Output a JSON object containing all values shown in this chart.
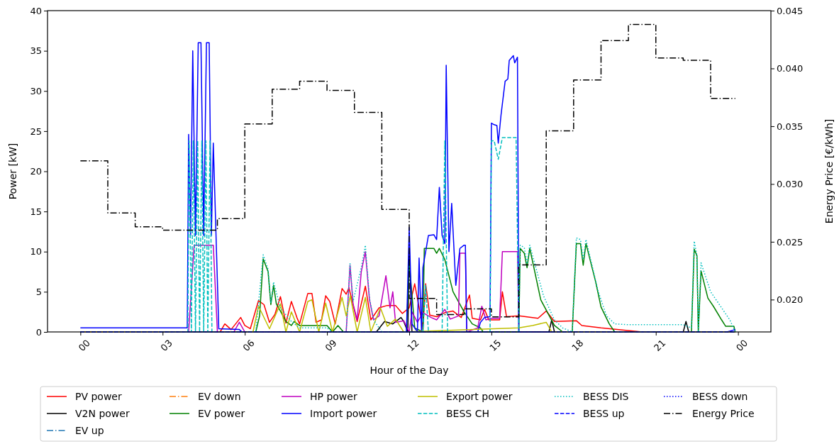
{
  "chart_data": {
    "type": "line",
    "xlabel": "Hour of the Day",
    "ylabel": "Power [kW]",
    "y2label": "Energy Price [€/kWh]",
    "xlim": [
      -1.2,
      25.2
    ],
    "xticks": [
      {
        "value": 0,
        "label": "00"
      },
      {
        "value": 3,
        "label": "03"
      },
      {
        "value": 6,
        "label": "06"
      },
      {
        "value": 9,
        "label": "09"
      },
      {
        "value": 12,
        "label": "12"
      },
      {
        "value": 15,
        "label": "15"
      },
      {
        "value": 18,
        "label": "18"
      },
      {
        "value": 21,
        "label": "21"
      },
      {
        "value": 24,
        "label": "00"
      }
    ],
    "ylim": [
      0,
      40
    ],
    "yticks": [
      0,
      5,
      10,
      15,
      20,
      25,
      30,
      35,
      40
    ],
    "y2lim": [
      0.0172,
      0.045
    ],
    "y2ticks": [
      {
        "value": 0.02,
        "label": "0.020"
      },
      {
        "value": 0.025,
        "label": "0.025"
      },
      {
        "value": 0.03,
        "label": "0.030"
      },
      {
        "value": 0.035,
        "label": "0.035"
      },
      {
        "value": 0.04,
        "label": "0.040"
      },
      {
        "value": 0.045,
        "label": "0.045"
      }
    ],
    "grid": false,
    "legend": "bottom",
    "series": [
      {
        "name": "PV power",
        "color": "#ff0000",
        "line_style": "solid",
        "x": [
          0,
          5.1,
          5.27,
          5.5,
          5.85,
          6.0,
          6.2,
          6.5,
          6.7,
          6.9,
          7.1,
          7.3,
          7.5,
          7.7,
          7.9,
          8.0,
          8.3,
          8.45,
          8.6,
          8.8,
          8.95,
          9.1,
          9.3,
          9.55,
          9.7,
          9.8,
          10.1,
          10.4,
          10.6,
          10.9,
          11.2,
          11.5,
          11.75,
          12.0,
          12.2,
          12.5,
          12.6,
          12.75,
          13.0,
          13.3,
          13.6,
          13.9,
          14.2,
          14.3,
          14.6,
          14.75,
          14.9,
          15.3,
          15.4,
          15.55,
          16.0,
          16.7,
          17.0,
          17.3,
          18.1,
          18.3,
          19.0,
          20.5,
          23.9
        ],
        "values": [
          0,
          0,
          1,
          0.3,
          1.8,
          0.8,
          0.4,
          3.9,
          3.4,
          1.2,
          2.2,
          4.4,
          1.1,
          3.8,
          1.8,
          1.0,
          4.8,
          4.8,
          1.2,
          1.5,
          4.5,
          3.8,
          1.0,
          5.4,
          4.7,
          5.5,
          1.3,
          5.7,
          1.5,
          3.0,
          3.3,
          3.3,
          2.3,
          3.0,
          6.0,
          0.5,
          6.0,
          2.1,
          1.9,
          2.4,
          2.6,
          1.8,
          4.6,
          1.7,
          1.5,
          2.8,
          1.5,
          1.5,
          5.0,
          1.9,
          2.0,
          1.7,
          2.6,
          1.3,
          1.4,
          0.8,
          0.5,
          0,
          0
        ]
      },
      {
        "name": "V2N power",
        "color": "#000000",
        "line_style": "solid",
        "x": [
          0,
          10.8,
          11.1,
          11.4,
          11.7,
          11.8,
          11.95,
          12.0,
          12.1,
          17.1,
          17.2,
          17.3,
          22.0,
          22.1,
          22.2,
          23.9
        ],
        "values": [
          0,
          0,
          1.3,
          1.0,
          1.8,
          1.3,
          0,
          10.6,
          0,
          0,
          1.5,
          0,
          0,
          1.3,
          0,
          0
        ]
      },
      {
        "name": "EV up",
        "color": "#1f77b4",
        "line_style": "dashdot"
      },
      {
        "name": "EV down",
        "color": "#ff7f0e",
        "line_style": "dashdot"
      },
      {
        "name": "EV power",
        "color": "#008000",
        "line_style": "solid",
        "x": [
          0,
          6.4,
          6.54,
          6.67,
          6.85,
          6.95,
          7.05,
          7.15,
          7.3,
          7.5,
          7.7,
          7.8,
          8.0,
          9.0,
          9.2,
          9.4,
          9.6,
          11.9,
          12.0,
          12.2,
          12.5,
          12.55,
          12.9,
          13.0,
          13.1,
          13.3,
          13.6,
          14.0,
          14.3,
          14.6,
          14.7,
          16.0,
          16.05,
          16.2,
          16.3,
          16.4,
          16.8,
          17.3,
          17.6,
          17.95,
          18.1,
          18.25,
          18.35,
          18.45,
          18.8,
          19.0,
          19.3,
          19.5,
          22.3,
          22.4,
          22.5,
          22.55,
          22.65,
          22.9,
          23.1,
          23.4,
          23.55,
          23.85,
          23.9
        ],
        "values": [
          0,
          0,
          2,
          9.1,
          7.5,
          3.4,
          5.8,
          3.5,
          2.6,
          1.3,
          0.8,
          1.3,
          0.8,
          0.8,
          0,
          0.8,
          0,
          0,
          8.8,
          0.5,
          0,
          10.4,
          10.4,
          9.8,
          10.4,
          9,
          5,
          2.5,
          1,
          0.5,
          0,
          0,
          10.4,
          9.8,
          8,
          10.4,
          4,
          0.8,
          0,
          0,
          11,
          11,
          8.3,
          11,
          6.3,
          3.1,
          1,
          0,
          0,
          10.3,
          9.5,
          0,
          7.6,
          4.2,
          3.2,
          1.5,
          0.7,
          0.7,
          0
        ]
      },
      {
        "name": "HP power",
        "color": "#bf00bf",
        "line_style": "solid",
        "x": [
          0,
          3.95,
          4.15,
          4.85,
          5.0,
          5.6,
          5.8,
          6.0,
          9.7,
          9.84,
          9.95,
          10.1,
          10.25,
          10.4,
          10.55,
          10.7,
          10.9,
          11.15,
          11.3,
          11.4,
          11.5,
          11.8,
          12.0,
          12.1,
          12.3,
          12.5,
          12.8,
          13.0,
          13.3,
          13.5,
          13.8,
          13.85,
          14.05,
          14.1,
          14.5,
          14.65,
          14.8,
          15.0,
          15.3,
          15.4,
          15.95,
          16.0,
          23.9
        ],
        "values": [
          0,
          0,
          10.8,
          10.8,
          0,
          0,
          1.2,
          0,
          0,
          8.3,
          3.5,
          1.5,
          7.5,
          10,
          4,
          1.5,
          2,
          7,
          3,
          5,
          1.2,
          1.4,
          0,
          2.5,
          1.2,
          2.4,
          1.8,
          1.5,
          2.8,
          1.6,
          2,
          9.8,
          9.8,
          0,
          0.5,
          3.2,
          1.5,
          1.7,
          1.7,
          10,
          10,
          0,
          0
        ]
      },
      {
        "name": "Import power",
        "color": "#0000ff",
        "line_style": "solid",
        "x": [
          0,
          3.9,
          3.95,
          4.02,
          4.1,
          4.2,
          4.3,
          4.4,
          4.5,
          4.6,
          4.7,
          4.78,
          4.85,
          5.05,
          5.8,
          5.9,
          11.9,
          12.0,
          12.1,
          12.3,
          12.36,
          12.45,
          12.5,
          12.6,
          12.7,
          12.9,
          13.0,
          13.1,
          13.2,
          13.3,
          13.35,
          13.45,
          13.55,
          13.7,
          13.85,
          14.0,
          14.05,
          14.1,
          14.5,
          14.6,
          14.75,
          14.95,
          15.0,
          15.1,
          15.2,
          15.25,
          15.35,
          15.5,
          15.6,
          15.65,
          15.8,
          15.85,
          15.95,
          16.0,
          23.6,
          23.9
        ],
        "values": [
          0.5,
          0.5,
          24.6,
          12,
          35,
          12,
          36,
          36,
          12,
          36,
          36,
          12,
          23.5,
          0.4,
          0.3,
          0,
          0,
          13,
          1,
          0,
          9.2,
          0,
          8,
          10,
          12,
          12.1,
          11.5,
          18,
          12,
          11,
          33.2,
          10,
          16,
          5.8,
          10.4,
          10.8,
          10.8,
          0,
          0,
          1.2,
          1.8,
          1.9,
          26,
          25.8,
          25.7,
          23.5,
          27,
          31.2,
          31.5,
          33.8,
          34.4,
          33.5,
          34.2,
          0,
          0,
          0.3
        ]
      },
      {
        "name": "Export power",
        "color": "#bfbf00",
        "line_style": "solid",
        "x": [
          0,
          6.3,
          6.5,
          6.9,
          7.3,
          7.5,
          7.7,
          8.0,
          8.3,
          8.45,
          8.7,
          8.95,
          9.2,
          9.55,
          9.7,
          9.85,
          10.1,
          10.4,
          10.6,
          10.95,
          11.2,
          11.5,
          11.8,
          16.0,
          16.5,
          17.0,
          17.2,
          23.9
        ],
        "values": [
          0,
          0,
          3.2,
          0.4,
          3.5,
          0,
          2.5,
          0,
          3.8,
          4,
          0,
          3.6,
          0,
          4.3,
          2,
          4.5,
          0,
          4.3,
          0,
          3,
          0.7,
          1.6,
          0,
          0.5,
          0.8,
          1.2,
          0,
          0
        ]
      },
      {
        "name": "BESS CH",
        "color": "#00bfbf",
        "line_style": "dashed",
        "x": [
          0,
          3.92,
          3.97,
          4.05,
          4.12,
          4.2,
          4.28,
          4.35,
          4.43,
          4.5,
          4.58,
          4.65,
          4.73,
          4.8,
          4.87,
          12.5,
          12.6,
          12.7,
          13.2,
          13.3,
          13.4,
          14.95,
          15.0,
          15.1,
          15.25,
          15.4,
          15.9,
          16.0,
          23.9
        ],
        "values": [
          0,
          0,
          23.8,
          0,
          23.8,
          0,
          23.8,
          0,
          23.8,
          0,
          23.8,
          0,
          23.8,
          0,
          0,
          0,
          5.8,
          0,
          0,
          23.8,
          0,
          0,
          23.8,
          23.8,
          21.5,
          24.2,
          24.2,
          0,
          0
        ]
      },
      {
        "name": "BESS DIS",
        "color": "#00bfbf",
        "line_style": "dotted",
        "x": [
          0,
          6.4,
          6.67,
          6.85,
          6.95,
          7.05,
          7.3,
          7.7,
          8.0,
          9.0,
          9.2,
          9.7,
          9.84,
          9.95,
          10.25,
          10.4,
          10.55,
          10.7,
          11.0,
          12.5,
          16.0,
          16.05,
          16.2,
          16.3,
          16.4,
          16.9,
          17.3,
          17.6,
          17.95,
          18.1,
          18.25,
          18.35,
          18.45,
          18.9,
          19.2,
          19.5,
          20.0,
          22.0,
          22.3,
          22.4,
          22.5,
          22.55,
          22.65,
          23.0,
          23.4,
          23.7,
          23.9
        ],
        "values": [
          0,
          0,
          9.6,
          7.8,
          3.6,
          6.2,
          3,
          1.3,
          0.5,
          0.5,
          0,
          0,
          8.5,
          3.8,
          8,
          10.8,
          4.2,
          1.5,
          0,
          0,
          0,
          10.8,
          10.5,
          8.5,
          10.8,
          4.5,
          1.5,
          0.5,
          0,
          11.7,
          11.5,
          9,
          11.5,
          5,
          2,
          1,
          0.9,
          0.9,
          0.5,
          11.3,
          9.5,
          0,
          8.6,
          5,
          3,
          1.5,
          0
        ]
      },
      {
        "name": "BESS up",
        "color": "#0000ff",
        "line_style": "dashed",
        "x": [
          0,
          23.9
        ],
        "values": [
          0,
          0
        ]
      },
      {
        "name": "BESS down",
        "color": "#0000ff",
        "line_style": "dotted",
        "x": [
          0,
          23.9
        ],
        "values": [
          0,
          0
        ]
      },
      {
        "name": "Energy Price",
        "color": "#000000",
        "line_style": "dashdot",
        "type": "step",
        "axis": "y2",
        "x": [
          0,
          1,
          2,
          3,
          5,
          6,
          7,
          8,
          9,
          10,
          11,
          12,
          13,
          14,
          15,
          16,
          17,
          18,
          19,
          20,
          21,
          22,
          23,
          23.9
        ],
        "values": [
          0.032,
          0.0275,
          0.0263,
          0.026,
          0.027,
          0.0352,
          0.0382,
          0.0389,
          0.0381,
          0.0362,
          0.0278,
          0.0201,
          0.0187,
          0.0192,
          0.0185,
          0.023,
          0.0346,
          0.039,
          0.0424,
          0.0438,
          0.0409,
          0.0407,
          0.0374,
          0.0374
        ]
      }
    ]
  }
}
